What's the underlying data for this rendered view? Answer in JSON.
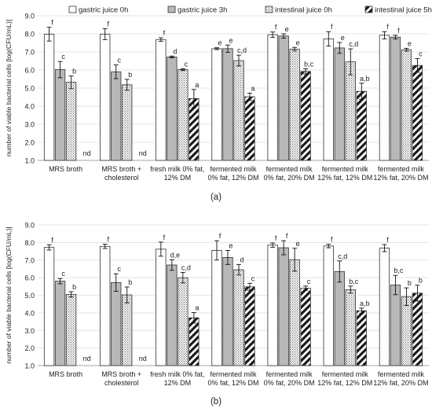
{
  "legend": {
    "items": [
      {
        "label": "gastric juice 0h",
        "pattern": "white"
      },
      {
        "label": "gastric juice 3h",
        "pattern": "gray"
      },
      {
        "label": "intestinal juice 0h",
        "pattern": "dots"
      },
      {
        "label": "intestinal juice 5h",
        "pattern": "hatch"
      }
    ]
  },
  "chart_data": [
    {
      "type": "bar",
      "panel_label": "(a)",
      "ylabel": "number of viable bacterial cells [log(CFU/mL)]",
      "ylim": [
        1.0,
        9.0
      ],
      "yticks": [
        "1.0",
        "2.0",
        "3.0",
        "4.0",
        "5.0",
        "6.0",
        "7.0",
        "8.0",
        "9.0"
      ],
      "categories": [
        [
          "MRS broth"
        ],
        [
          "MRS broth +",
          "cholesterol"
        ],
        [
          "fresh milk 0% fat,",
          "12% DM"
        ],
        [
          "fermented milk",
          "0% fat, 12% DM"
        ],
        [
          "fermented milk",
          "0% fat, 20% DM"
        ],
        [
          "fermented milk",
          "12% fat, 12% DM"
        ],
        [
          "fermented milk",
          "12% fat, 20% DM"
        ]
      ],
      "series": [
        {
          "name": "gastric juice 0h",
          "values": [
            7.98,
            7.98,
            7.68,
            7.18,
            7.95,
            7.72,
            7.92
          ],
          "errors": [
            0.38,
            0.3,
            0.1,
            0.05,
            0.15,
            0.4,
            0.2
          ],
          "labels": [
            "f",
            "f",
            "f",
            "e",
            "f",
            "f",
            "f"
          ]
        },
        {
          "name": "gastric juice 3h",
          "values": [
            6.02,
            5.9,
            6.72,
            7.18,
            7.88,
            7.22,
            7.82
          ],
          "errors": [
            0.45,
            0.38,
            0.05,
            0.2,
            0.12,
            0.3,
            0.1
          ],
          "labels": [
            "c",
            "c",
            "d",
            "e",
            "e",
            "e",
            "f"
          ]
        },
        {
          "name": "intestinal juice 0h",
          "values": [
            5.32,
            5.18,
            6.02,
            6.52,
            7.15,
            6.45,
            7.12
          ],
          "errors": [
            0.35,
            0.3,
            0.05,
            0.3,
            0.1,
            0.72,
            0.08
          ],
          "labels": [
            "b",
            "b",
            "c",
            "c,d",
            "e",
            "c,d",
            "e"
          ]
        },
        {
          "name": "intestinal juice 5h",
          "values": [
            null,
            null,
            4.42,
            4.52,
            5.92,
            4.82,
            6.25
          ],
          "errors": [
            0,
            0,
            0.5,
            0.2,
            0.15,
            0.45,
            0.38
          ],
          "labels": [
            "nd",
            "nd",
            "a",
            "a",
            "b,c",
            "a,b",
            "c"
          ]
        }
      ]
    },
    {
      "type": "bar",
      "panel_label": "(b)",
      "ylabel": "number of viable bacterial cells [log(CFU/mL)]",
      "ylim": [
        1.0,
        9.0
      ],
      "yticks": [
        "1.0",
        "2.0",
        "3.0",
        "4.0",
        "5.0",
        "6.0",
        "7.0",
        "8.0",
        "9.0"
      ],
      "categories": [
        [
          "MRS broth"
        ],
        [
          "MRS broth +",
          "cholesterol"
        ],
        [
          "fresh milk 0% fat,",
          "12% DM"
        ],
        [
          "fermented milk",
          "0% fat, 12% DM"
        ],
        [
          "fermented milk",
          "0% fat, 20% DM"
        ],
        [
          "fermented milk",
          "12% fat, 12% DM"
        ],
        [
          "fermented milk",
          "12% fat, 20% DM"
        ]
      ],
      "series": [
        {
          "name": "gastric juice 0h",
          "values": [
            7.72,
            7.78,
            7.62,
            7.55,
            7.85,
            7.8,
            7.68
          ],
          "errors": [
            0.15,
            0.12,
            0.4,
            0.55,
            0.12,
            0.1,
            0.2
          ],
          "labels": [
            "f",
            "f",
            "f",
            "f",
            "f",
            "f",
            "f"
          ]
        },
        {
          "name": "gastric juice 3h",
          "values": [
            5.8,
            5.72,
            6.72,
            7.15,
            7.7,
            6.35,
            5.58
          ],
          "errors": [
            0.15,
            0.5,
            0.3,
            0.4,
            0.4,
            0.6,
            0.55
          ],
          "labels": [
            "c",
            "c",
            "d,e",
            "e",
            "f",
            "c,d",
            "b,c"
          ]
        },
        {
          "name": "intestinal juice 0h",
          "values": [
            5.05,
            5.02,
            6.0,
            6.45,
            7.02,
            5.32,
            4.92
          ],
          "errors": [
            0.15,
            0.45,
            0.3,
            0.3,
            0.65,
            0.2,
            0.5
          ],
          "labels": [
            "b",
            "b",
            "c,d",
            "d",
            "e",
            "b,c",
            "b"
          ]
        },
        {
          "name": "intestinal juice 5h",
          "values": [
            null,
            null,
            3.72,
            5.48,
            5.4,
            4.12,
            5.12
          ],
          "errors": [
            0,
            0,
            0.3,
            0.2,
            0.12,
            0.15,
            0.45
          ],
          "labels": [
            "nd",
            "nd",
            "a",
            "c",
            "c",
            "a,b",
            "b"
          ]
        }
      ]
    }
  ]
}
